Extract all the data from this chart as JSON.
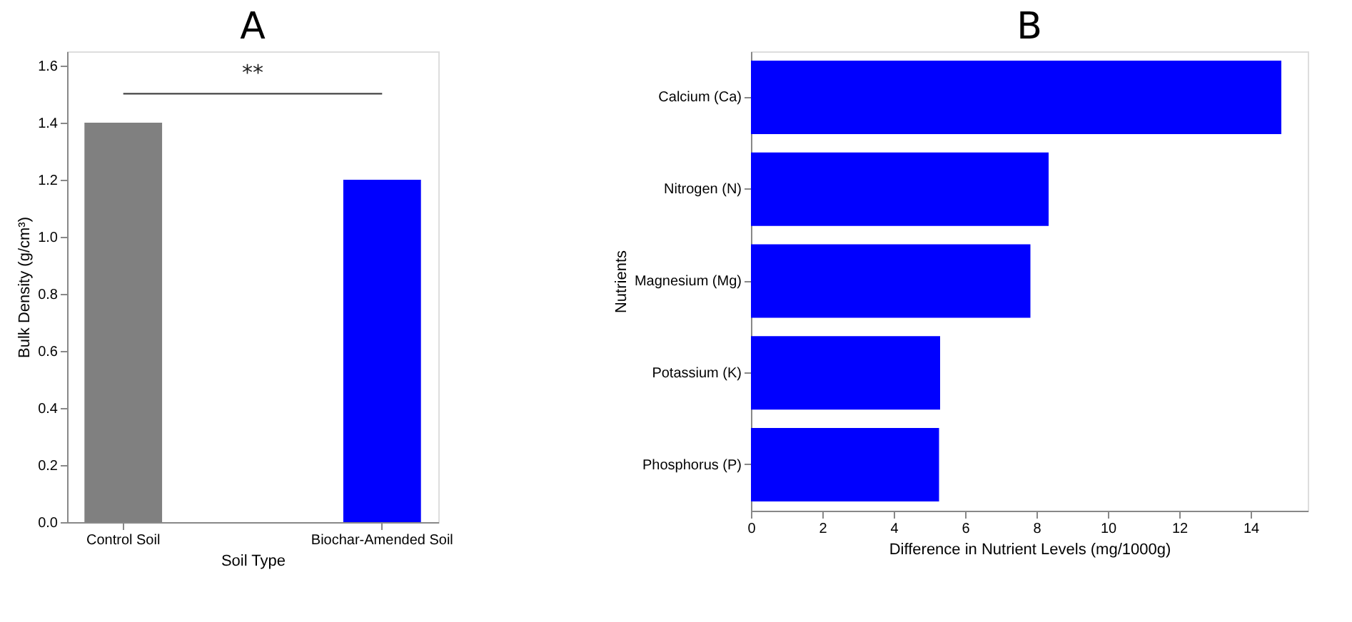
{
  "chart_data": [
    {
      "type": "bar",
      "title": "A",
      "xlabel": "Soil Type",
      "ylabel": "Bulk Density (g/cm³)",
      "categories": [
        "Control Soil",
        "Biochar-Amended Soil"
      ],
      "values": [
        1.4,
        1.2
      ],
      "colors": [
        "#808080",
        "#0000ff"
      ],
      "ylim": [
        0,
        1.65
      ],
      "yticks": [
        {
          "value": 0,
          "label": "0.0"
        },
        0.2,
        0.4,
        0.6,
        0.8,
        {
          "value": 1,
          "label": "1.0"
        },
        1.2,
        1.4,
        1.6
      ],
      "grid": false,
      "annotations": [
        "**"
      ]
    },
    {
      "type": "bar",
      "orientation": "horizontal",
      "title": "B",
      "xlabel": "Difference in Nutrient Levels (mg/1000g)",
      "ylabel": "Nutrients",
      "categories": [
        "Calcium (Ca)",
        "Nitrogen (N)",
        "Magnesium (Mg)",
        "Potassium (K)",
        "Phosphorus (P)"
      ],
      "values": [
        14.86,
        8.34,
        7.83,
        5.3,
        5.27
      ],
      "color": "#0000ff",
      "xlim": [
        0,
        15.6
      ],
      "xticks": [
        0,
        2,
        4,
        6,
        8,
        10,
        12,
        14
      ],
      "grid": false
    }
  ]
}
